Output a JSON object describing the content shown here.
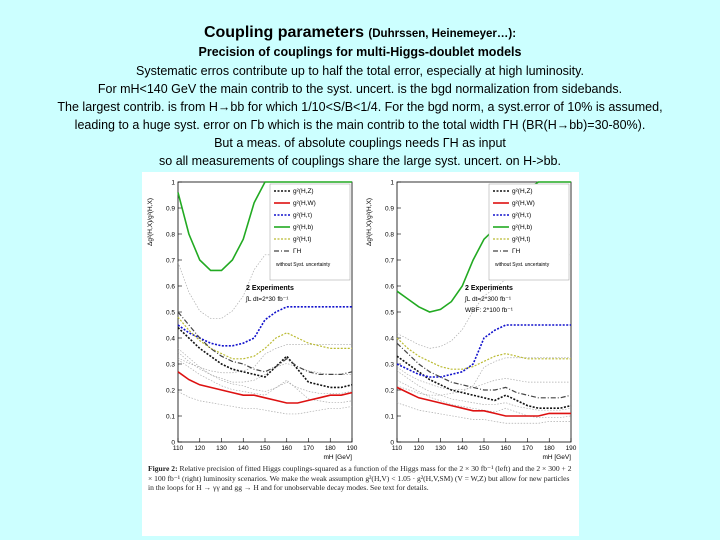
{
  "slide": {
    "title": "Coupling parameters",
    "title_authors": "(Duhrssen, Heinemeyer…):",
    "subtitle": "Precision of couplings for multi-Higgs-doublet models",
    "lines": [
      "Systematic erros contribute up to half the total error, especially at high luminosity.",
      "For mH<140 GeV the main contrib to the syst. uncert. is the bgd normalization from sidebands.",
      "The largest contrib. is from H→bb for which 1/10<S/B<1/4. For the bgd norm, a syst.error of 10% is assumed,",
      "leading to a huge syst. error on Γb which is the main contrib to the total width ΓH (BR(H→bb)=30-80%).",
      "But a meas. of absolute couplings needs  ΓH  as input",
      "so all measurements of couplings share the large syst. uncert. on H->bb."
    ]
  },
  "figure": {
    "caption_label": "Figure 2:",
    "caption_text": "Relative precision of fitted Higgs couplings-squared as a function of the Higgs mass for the 2 × 30 fb⁻¹ (left) and the 2 × 300 + 2 × 100 fb⁻¹ (right) luminosity scenarios. We make the weak assumption g²(H,V) < 1.05 · g²(H,V,SM) (V = W,Z) but allow for new particles in the loops for H → γγ and gg → H and for unobservable decay modes. See text for details."
  },
  "colors": {
    "background": "#ccffff",
    "ZZ": "#111111",
    "WW": "#dd1111",
    "tau": "#1111cc",
    "b": "#22aa22",
    "t": "#bbbb33",
    "GammaH": "#444444",
    "nosyst": "#999999"
  },
  "chart_data": [
    {
      "type": "line",
      "ylabel": "Δg²(H,X)/g²(H,X)",
      "xlabel": "mH [GeV]",
      "xlim": [
        110,
        190
      ],
      "ylim": [
        0,
        1
      ],
      "xticks": [
        "110",
        "120",
        "130",
        "140",
        "150",
        "160",
        "170",
        "180",
        "190"
      ],
      "yticks": [
        "0",
        "0.1",
        "0.2",
        "0.3",
        "0.4",
        "0.5",
        "0.6",
        "0.7",
        "0.8",
        "0.9",
        "1"
      ],
      "legend": [
        "g²(H,Z)",
        "g²(H,W)",
        "g²(H,τ)",
        "g²(H,b)",
        "g²(H,t)",
        "ΓH",
        "without Syst. uncertainty"
      ],
      "annotation": [
        "2 Experiments",
        "∫L dt=2*30 fb⁻¹"
      ],
      "x": [
        110,
        115,
        120,
        125,
        130,
        135,
        140,
        145,
        150,
        155,
        160,
        165,
        170,
        175,
        180,
        185,
        190
      ],
      "series": [
        {
          "name": "g²(H,Z)",
          "values": [
            0.44,
            0.4,
            0.36,
            0.33,
            0.3,
            0.28,
            0.27,
            0.26,
            0.25,
            0.29,
            0.33,
            0.28,
            0.23,
            0.22,
            0.21,
            0.21,
            0.22
          ]
        },
        {
          "name": "g²(H,W)",
          "values": [
            0.27,
            0.24,
            0.22,
            0.21,
            0.2,
            0.19,
            0.18,
            0.18,
            0.17,
            0.16,
            0.15,
            0.15,
            0.16,
            0.17,
            0.18,
            0.18,
            0.19
          ]
        },
        {
          "name": "g²(H,τ)",
          "values": [
            0.45,
            0.42,
            0.4,
            0.38,
            0.37,
            0.37,
            0.38,
            0.4,
            0.47,
            0.5,
            0.52,
            0.52,
            0.52,
            0.52,
            0.52,
            0.52,
            0.52
          ]
        },
        {
          "name": "g²(H,b)",
          "values": [
            0.96,
            0.8,
            0.7,
            0.66,
            0.66,
            0.7,
            0.78,
            0.92,
            1.0,
            1.0,
            1.0,
            1.0,
            1.0,
            1.0,
            1.0,
            1.0,
            1.0
          ]
        },
        {
          "name": "g²(H,t)",
          "values": [
            0.48,
            0.43,
            0.39,
            0.36,
            0.34,
            0.32,
            0.32,
            0.33,
            0.36,
            0.4,
            0.42,
            0.4,
            0.38,
            0.37,
            0.36,
            0.36,
            0.36
          ]
        },
        {
          "name": "ΓH",
          "values": [
            0.5,
            0.45,
            0.4,
            0.36,
            0.33,
            0.31,
            0.3,
            0.28,
            0.27,
            0.29,
            0.32,
            0.29,
            0.27,
            0.26,
            0.26,
            0.26,
            0.27
          ]
        }
      ]
    },
    {
      "type": "line",
      "ylabel": "Δg²(H,X)/g²(H,X)",
      "xlabel": "mH [GeV]",
      "xlim": [
        110,
        190
      ],
      "ylim": [
        0,
        1
      ],
      "xticks": [
        "110",
        "120",
        "130",
        "140",
        "150",
        "160",
        "170",
        "180",
        "190"
      ],
      "yticks": [
        "0",
        "0.1",
        "0.2",
        "0.3",
        "0.4",
        "0.5",
        "0.6",
        "0.7",
        "0.8",
        "0.9",
        "1"
      ],
      "legend": [
        "g²(H,Z)",
        "g²(H,W)",
        "g²(H,τ)",
        "g²(H,b)",
        "g²(H,t)",
        "ΓH",
        "without Syst. uncertainty"
      ],
      "annotation": [
        "2 Experiments",
        "∫L dt=2*300 fb⁻¹",
        "WBF: 2*100 fb⁻¹"
      ],
      "x": [
        110,
        115,
        120,
        125,
        130,
        135,
        140,
        145,
        150,
        155,
        160,
        165,
        170,
        175,
        180,
        185,
        190
      ],
      "series": [
        {
          "name": "g²(H,Z)",
          "values": [
            0.33,
            0.3,
            0.27,
            0.24,
            0.22,
            0.2,
            0.19,
            0.18,
            0.17,
            0.16,
            0.18,
            0.16,
            0.14,
            0.13,
            0.13,
            0.13,
            0.14
          ]
        },
        {
          "name": "g²(H,W)",
          "values": [
            0.21,
            0.19,
            0.17,
            0.16,
            0.15,
            0.14,
            0.13,
            0.12,
            0.12,
            0.11,
            0.1,
            0.1,
            0.1,
            0.1,
            0.11,
            0.11,
            0.11
          ]
        },
        {
          "name": "g²(H,τ)",
          "values": [
            0.3,
            0.28,
            0.26,
            0.25,
            0.25,
            0.26,
            0.27,
            0.3,
            0.4,
            0.43,
            0.45,
            0.45,
            0.45,
            0.45,
            0.45,
            0.45,
            0.45
          ]
        },
        {
          "name": "g²(H,b)",
          "values": [
            0.58,
            0.55,
            0.52,
            0.5,
            0.51,
            0.54,
            0.6,
            0.7,
            0.78,
            0.82,
            0.87,
            0.92,
            0.97,
            1.0,
            1.0,
            1.0,
            1.0
          ]
        },
        {
          "name": "g²(H,t)",
          "values": [
            0.4,
            0.36,
            0.33,
            0.31,
            0.29,
            0.28,
            0.28,
            0.29,
            0.31,
            0.33,
            0.34,
            0.33,
            0.32,
            0.32,
            0.32,
            0.32,
            0.32
          ]
        },
        {
          "name": "ΓH",
          "values": [
            0.38,
            0.34,
            0.3,
            0.27,
            0.25,
            0.23,
            0.22,
            0.21,
            0.2,
            0.2,
            0.21,
            0.19,
            0.18,
            0.17,
            0.17,
            0.17,
            0.18
          ]
        }
      ]
    }
  ]
}
